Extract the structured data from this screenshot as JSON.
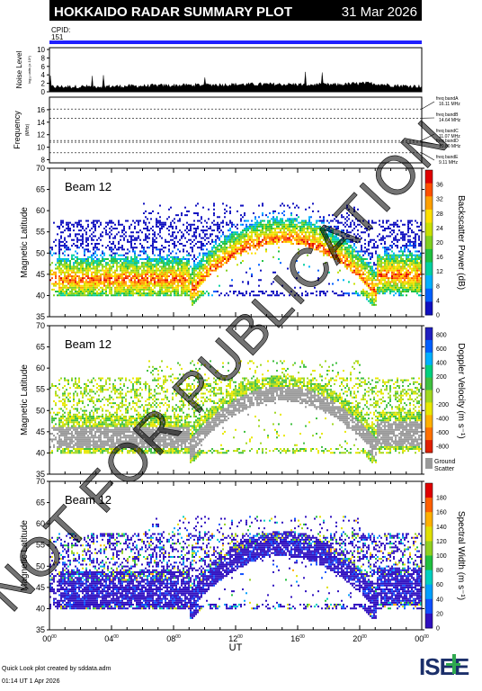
{
  "header": {
    "title": "HOKKAIDO RADAR SUMMARY PLOT",
    "date": "31 Mar 2026"
  },
  "cpid": {
    "label": "CPID:",
    "value": "151"
  },
  "noise_panel": {
    "ylabel": "Noise Level",
    "ylabel_small": "log₁₀ units (x 10⁴)",
    "yticks": [
      "0",
      "2",
      "4",
      "6",
      "8",
      "10"
    ],
    "ylim": [
      0,
      10
    ]
  },
  "freq_panel": {
    "ylabel": "Frequency",
    "ylabel_unit": "(MHz)",
    "yticks": [
      "8",
      "10",
      "12",
      "14",
      "16"
    ],
    "ylim": [
      7.5,
      18
    ],
    "bands": [
      {
        "label": "freq bandA",
        "freq": "16.11 MHz",
        "value": 16.11
      },
      {
        "label": "freq bandB",
        "freq": "14.64 MHz",
        "value": 14.64
      },
      {
        "label": "freq bandC",
        "freq": "11.07 MHz",
        "value": 11.07
      },
      {
        "label": "freq bandD",
        "freq": "10.80 MHz",
        "value": 10.8
      },
      {
        "label": "freq bandE",
        "freq": "9.11 MHz",
        "value": 9.11
      }
    ]
  },
  "panels": [
    {
      "beam": "Beam 12",
      "ylabel": "Magnetic Latitude",
      "cbar_label": "Backscatter Power (dB)",
      "cbar_ticks": [
        "0",
        "4",
        "8",
        "12",
        "16",
        "20",
        "24",
        "28",
        "32",
        "36"
      ],
      "palette": [
        "#1010c0",
        "#0060ff",
        "#00b0ff",
        "#00d0a0",
        "#20c040",
        "#80d020",
        "#c8e000",
        "#ffe000",
        "#ffa000",
        "#ff5000",
        "#e00000"
      ],
      "ground": false
    },
    {
      "beam": "Beam 12",
      "ylabel": "Magnetic Latitude",
      "cbar_label": "Doppler Velocity (m s⁻¹)",
      "cbar_ticks": [
        "800",
        "600",
        "400",
        "200",
        "0",
        "-200",
        "-400",
        "-600",
        "-800"
      ],
      "palette": [
        "#2020c0",
        "#0060ff",
        "#00b0ff",
        "#00d080",
        "#40c040",
        "#a0d820",
        "#e8e800",
        "#ffb000",
        "#ff7000",
        "#e02000"
      ],
      "ground": true,
      "ground_label": "Ground",
      "ground_label2": "Scatter"
    },
    {
      "beam": "Beam 12",
      "ylabel": "Magnetic Latitude",
      "cbar_label": "Spectral Width (m s⁻¹)",
      "cbar_ticks": [
        "0",
        "20",
        "40",
        "60",
        "80",
        "100",
        "120",
        "140",
        "160",
        "180"
      ],
      "palette": [
        "#3010c0",
        "#1050ff",
        "#00a0ff",
        "#00d0c0",
        "#20c040",
        "#90d020",
        "#e0e000",
        "#ffb000",
        "#ff6000",
        "#e00000"
      ],
      "ground": false
    }
  ],
  "chart_data": {
    "type": "heatmap",
    "title": "HOKKAIDO RADAR SUMMARY PLOT",
    "xlabel": "UT",
    "xlim": [
      0,
      24
    ],
    "x_ticks": [
      "00",
      "04",
      "08",
      "12",
      "16",
      "20",
      "00"
    ],
    "x_tick_sup": "00",
    "ylabel": "Magnetic Latitude",
    "ylim": [
      35,
      70
    ],
    "y_ticks": [
      "35",
      "40",
      "45",
      "50",
      "55",
      "60",
      "65",
      "70"
    ],
    "beam": "Beam 12",
    "series": [
      {
        "name": "Backscatter Power (dB)",
        "range": [
          0,
          36
        ]
      },
      {
        "name": "Doppler Velocity (m s⁻¹)",
        "range": [
          -800,
          800
        ]
      },
      {
        "name": "Spectral Width (m s⁻¹)",
        "range": [
          0,
          180
        ]
      }
    ]
  },
  "watermark": "NOT FOR PUBLICATION",
  "footer": {
    "line1": "Quick Look plot created by sddata.adm",
    "line2": "01:14 UT  1 Apr 2026",
    "logo": "ISEE"
  }
}
